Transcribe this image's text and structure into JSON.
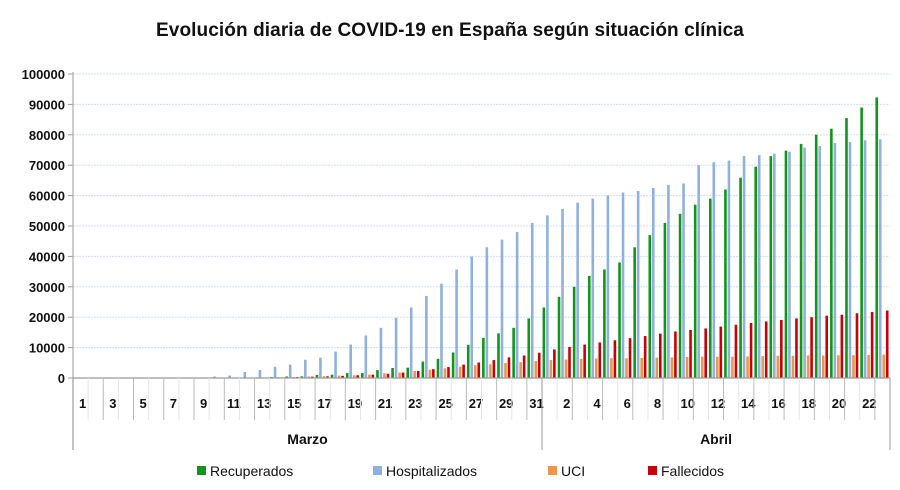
{
  "chart_data": {
    "type": "bar",
    "title": "Evolución diaria de COVID-19 en España según situación clínica",
    "xlabel": "",
    "ylabel": "",
    "ylim": [
      0,
      100000
    ],
    "yticks": [
      0,
      10000,
      20000,
      30000,
      40000,
      50000,
      60000,
      70000,
      80000,
      90000,
      100000
    ],
    "grid": true,
    "legend_position": "bottom",
    "month_groups": [
      {
        "label": "Marzo",
        "days": 31
      },
      {
        "label": "Abril",
        "days": 23
      }
    ],
    "tick_labels": {
      "Marzo": [
        "1",
        "3",
        "5",
        "7",
        "9",
        "11",
        "13",
        "15",
        "17",
        "19",
        "21",
        "23",
        "25",
        "27",
        "29",
        "31"
      ],
      "Abril": [
        "2",
        "4",
        "6",
        "8",
        "10",
        "12",
        "14",
        "16",
        "18",
        "20",
        "22"
      ]
    },
    "categories": [
      "1 Mar",
      "2 Mar",
      "3 Mar",
      "4 Mar",
      "5 Mar",
      "6 Mar",
      "7 Mar",
      "8 Mar",
      "9 Mar",
      "10 Mar",
      "11 Mar",
      "12 Mar",
      "13 Mar",
      "14 Mar",
      "15 Mar",
      "16 Mar",
      "17 Mar",
      "18 Mar",
      "19 Mar",
      "20 Mar",
      "21 Mar",
      "22 Mar",
      "23 Mar",
      "24 Mar",
      "25 Mar",
      "26 Mar",
      "27 Mar",
      "28 Mar",
      "29 Mar",
      "30 Mar",
      "31 Mar",
      "1 Abr",
      "2 Abr",
      "3 Abr",
      "4 Abr",
      "5 Abr",
      "6 Abr",
      "7 Abr",
      "8 Abr",
      "9 Abr",
      "10 Abr",
      "11 Abr",
      "12 Abr",
      "13 Abr",
      "14 Abr",
      "15 Abr",
      "16 Abr",
      "17 Abr",
      "18 Abr",
      "19 Abr",
      "20 Abr",
      "21 Abr",
      "22 Abr",
      "23 Abr"
    ],
    "series": [
      {
        "name": "Recuperados",
        "color": "#109618",
        "values": [
          0,
          0,
          0,
          0,
          0,
          0,
          0,
          0,
          0,
          0,
          0,
          100,
          200,
          300,
          500,
          550,
          1000,
          1100,
          1600,
          1600,
          2600,
          3300,
          3400,
          5400,
          6300,
          8400,
          10900,
          13200,
          14700,
          16500,
          19600,
          23200,
          26700,
          30000,
          33600,
          35700,
          38000,
          43000,
          47000,
          51000,
          54000,
          57000,
          59000,
          62000,
          65900,
          69500,
          73000,
          74800,
          77000,
          80000,
          82000,
          85500,
          89000,
          92300
        ]
      },
      {
        "name": "Hospitalizados",
        "color": "#8fb1dc",
        "values": [
          0,
          0,
          0,
          0,
          0,
          0,
          0,
          0,
          0,
          500,
          800,
          2000,
          2600,
          3700,
          4400,
          6000,
          6700,
          8700,
          11000,
          14000,
          16500,
          19800,
          23200,
          27000,
          31000,
          35700,
          40000,
          43000,
          45500,
          48000,
          51000,
          53500,
          55600,
          57700,
          59000,
          60000,
          61000,
          61500,
          62500,
          63500,
          64000,
          70000,
          71000,
          71500,
          73000,
          73300,
          73800,
          74400,
          75800,
          76300,
          77300,
          77600,
          78200,
          78500
        ]
      },
      {
        "name": "UCI",
        "color": "#f0964a",
        "values": [
          0,
          0,
          0,
          0,
          0,
          0,
          0,
          0,
          0,
          0,
          0,
          100,
          150,
          250,
          300,
          500,
          600,
          800,
          900,
          1100,
          1600,
          1800,
          2300,
          2700,
          3200,
          3700,
          4200,
          4500,
          4900,
          5200,
          5600,
          5900,
          6100,
          6300,
          6400,
          6500,
          6500,
          6600,
          6700,
          6800,
          6900,
          7000,
          7000,
          7000,
          7100,
          7200,
          7300,
          7300,
          7400,
          7400,
          7500,
          7500,
          7600,
          7700
        ]
      },
      {
        "name": "Fallecidos",
        "color": "#c8000a",
        "values": [
          0,
          0,
          0,
          0,
          0,
          0,
          0,
          0,
          0,
          0,
          0,
          100,
          150,
          200,
          300,
          450,
          550,
          700,
          900,
          1100,
          1400,
          1800,
          2300,
          2900,
          3600,
          4400,
          5100,
          5900,
          6800,
          7400,
          8300,
          9400,
          10200,
          11000,
          11700,
          12400,
          13100,
          13800,
          14600,
          15300,
          15800,
          16300,
          16900,
          17500,
          18100,
          18600,
          19100,
          19600,
          20000,
          20500,
          20800,
          21300,
          21700,
          22200
        ]
      }
    ]
  }
}
